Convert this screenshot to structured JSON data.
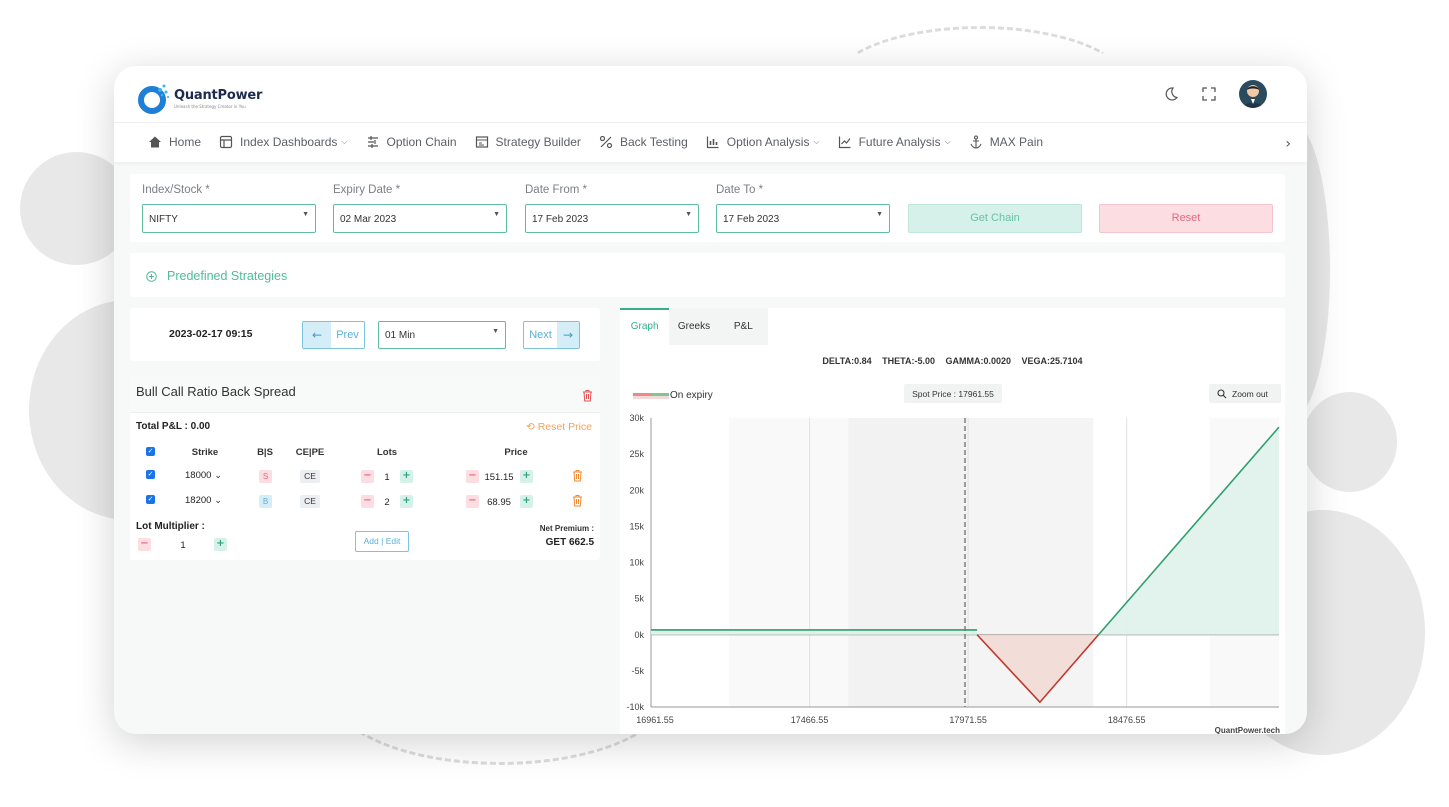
{
  "app": {
    "name": "QuantPower",
    "tagline": "Unleash the Strategy Creator in You"
  },
  "nav": {
    "items": [
      {
        "label": "Home",
        "icon": "home-icon",
        "dropdown": false
      },
      {
        "label": "Index Dashboards",
        "icon": "dashboard-icon",
        "dropdown": true
      },
      {
        "label": "Option Chain",
        "icon": "option-chain-icon",
        "dropdown": false
      },
      {
        "label": "Strategy Builder",
        "icon": "strategy-icon",
        "dropdown": false
      },
      {
        "label": "Back Testing",
        "icon": "percent-icon",
        "dropdown": false
      },
      {
        "label": "Option Analysis",
        "icon": "bar-chart-icon",
        "dropdown": true
      },
      {
        "label": "Future Analysis",
        "icon": "line-chart-icon",
        "dropdown": true
      },
      {
        "label": "MAX Pain",
        "icon": "anchor-icon",
        "dropdown": false
      }
    ]
  },
  "form": {
    "index_label": "Index/Stock *",
    "index_value": "NIFTY",
    "expiry_label": "Expiry Date *",
    "expiry_value": "02 Mar 2023",
    "from_label": "Date From *",
    "from_value": "17 Feb 2023",
    "to_label": "Date To *",
    "to_value": "17 Feb 2023",
    "get_chain": "Get Chain",
    "reset": "Reset"
  },
  "predefined": "Predefined Strategies",
  "timeline": {
    "datetime": "2023-02-17 09:15",
    "prev": "Prev",
    "interval": "01 Min",
    "next": "Next"
  },
  "strategy": {
    "title": "Bull Call Ratio Back Spread",
    "total_pl": "Total P&L : 0.00",
    "reset_price": "Reset Price",
    "headers": {
      "strike": "Strike",
      "bs": "B|S",
      "cepe": "CE|PE",
      "lots": "Lots",
      "price": "Price"
    },
    "legs": [
      {
        "strike": "18000",
        "bs": "S",
        "type": "CE",
        "lots": "1",
        "price": "151.15"
      },
      {
        "strike": "18200",
        "bs": "B",
        "type": "CE",
        "lots": "2",
        "price": "68.95"
      }
    ],
    "lot_multiplier_label": "Lot Multiplier :",
    "lot_multiplier": "1",
    "add_edit": "Add | Edit",
    "net_premium_label": "Net Premium :",
    "net_premium_value": "GET 662.5"
  },
  "tabs": {
    "graph": "Graph",
    "greeks": "Greeks",
    "pl": "P&L"
  },
  "greeks": {
    "delta": "DELTA:0.84",
    "theta": "THETA:-5.00",
    "gamma": "GAMMA:0.0020",
    "vega": "VEGA:25.7104"
  },
  "colors": {
    "accent": "#34b08a",
    "profit": "#2e9e6c",
    "loss": "#c0392b",
    "reset": "#e56a80",
    "info": "#59b1d8"
  },
  "chart_data": {
    "type": "line",
    "legend": "On expiry",
    "spot_label": "Spot Price : 17961.55",
    "spot": 17961.55,
    "zoom_label": "Zoom out",
    "watermark": "QuantPower.tech",
    "x_ticks": [
      "16961.55",
      "17466.55",
      "17971.55",
      "18476.55"
    ],
    "y_ticks": [
      "30k",
      "25k",
      "20k",
      "15k",
      "10k",
      "5k",
      "0k",
      "-5k",
      "-10k"
    ],
    "xlim": [
      16961.55,
      18961.55
    ],
    "ylim": [
      -10000,
      30000
    ],
    "series": [
      {
        "name": "On expiry",
        "x": [
          16961.55,
          18000,
          18200,
          18386.75,
          18961.55
        ],
        "y": [
          662.5,
          662.5,
          -9337.5,
          0,
          28740
        ]
      }
    ],
    "shaded_bands": [
      [
        17210,
        17590
      ],
      [
        17590,
        17970
      ],
      [
        17970,
        18370
      ],
      [
        18740,
        18961.55
      ]
    ]
  }
}
